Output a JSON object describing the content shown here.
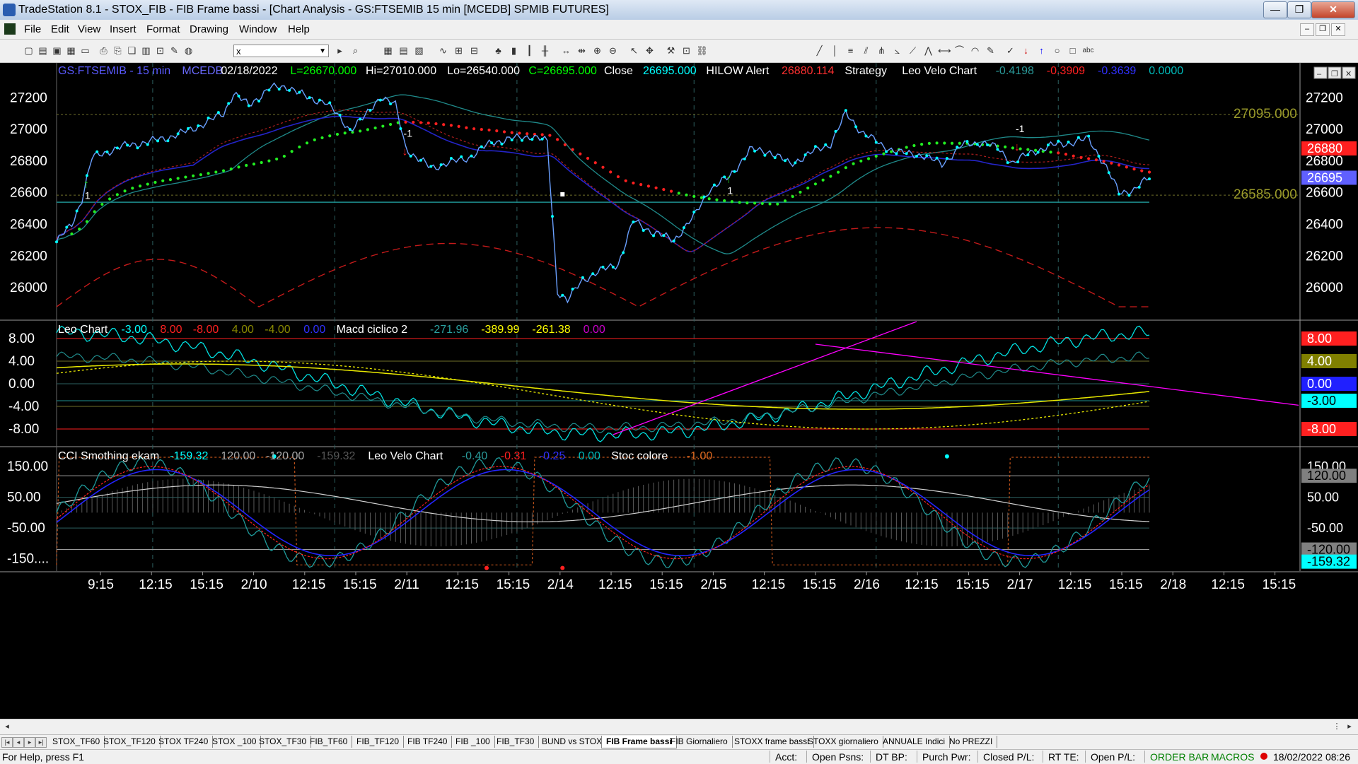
{
  "window": {
    "title": "TradeStation 8.1 - STOX_FIB - FIB Frame bassi - [Chart Analysis - GS:FTSEMIB  15 min  [MCEDB] SPMIB FUTURES]",
    "minimize": "—",
    "maximize": "❐",
    "close": "✕"
  },
  "menu": [
    "File",
    "Edit",
    "View",
    "Insert",
    "Format",
    "Drawing",
    "Window",
    "Help"
  ],
  "toolbar": {
    "symbol_value": "x"
  },
  "colors": {
    "bg": "#000000",
    "accent_cyan": "#00ffff",
    "dot_red": "#ff2020",
    "dot_green": "#22ee22",
    "blue": "#2020ff",
    "yellow": "#e8e800",
    "magenta": "#ff00ff"
  },
  "price_pane": {
    "legend": [
      {
        "text": "GS:FTSEMIB - 15 min",
        "color": "#5a5aff"
      },
      {
        "text": "MCEDB",
        "color": "#6a6aff"
      },
      {
        "text": "02/18/2022",
        "color": "#ffffff"
      },
      {
        "text": "L=26670.000",
        "color": "#00ff00"
      },
      {
        "text": "Hi=27010.000",
        "color": "#ffffff"
      },
      {
        "text": "Lo=26540.000",
        "color": "#ffffff"
      },
      {
        "text": "C=26695.000",
        "color": "#00ff00"
      },
      {
        "text": "Close",
        "color": "#ffffff"
      },
      {
        "text": "26695.000",
        "color": "#00ffff"
      },
      {
        "text": "HILOW Alert",
        "color": "#ffffff"
      },
      {
        "text": "26880.114",
        "color": "#ff3030"
      },
      {
        "text": "Strategy",
        "color": "#ffffff"
      },
      {
        "text": "Leo Velo Chart",
        "color": "#ffffff"
      },
      {
        "text": "-0.4198",
        "color": "#2a9a9a"
      },
      {
        "text": "-0.3909",
        "color": "#ff2020"
      },
      {
        "text": "-0.3639",
        "color": "#3030ff"
      },
      {
        "text": "0.0000",
        "color": "#00bbbb"
      }
    ],
    "y_ticks": [
      "27200",
      "27000",
      "26800",
      "26600",
      "26400",
      "26200",
      "26000"
    ],
    "level_labels": [
      "27095.000",
      "26585.000"
    ],
    "right_badges": [
      {
        "text": "26880",
        "bg": "#ff2020",
        "fg": "#ffffff",
        "price": 26880
      },
      {
        "text": "26695",
        "bg": "#6060ff",
        "fg": "#ffffff",
        "price": 26695
      }
    ],
    "trade_markers": [
      "1",
      "-1",
      "1",
      "-1"
    ]
  },
  "macd_pane": {
    "legend": [
      {
        "text": "Leo Chart",
        "color": "#ffffff"
      },
      {
        "text": "-3.00",
        "color": "#00ffff"
      },
      {
        "text": "8.00",
        "color": "#ff2020"
      },
      {
        "text": "-8.00",
        "color": "#ff2020"
      },
      {
        "text": "4.00",
        "color": "#888800"
      },
      {
        "text": "-4.00",
        "color": "#888800"
      },
      {
        "text": "0.00",
        "color": "#3030ff"
      },
      {
        "text": "Macd ciclico 2",
        "color": "#ffffff"
      },
      {
        "text": "-271.96",
        "color": "#2aa0a0"
      },
      {
        "text": "-389.99",
        "color": "#ffff00"
      },
      {
        "text": "-261.38",
        "color": "#ffff00"
      },
      {
        "text": "0.00",
        "color": "#cc00cc"
      }
    ],
    "y_ticks": [
      "8.00",
      "4.00",
      "0.00",
      "-4.00",
      "-8.00"
    ],
    "right_badges": [
      {
        "text": "8.00",
        "bg": "#ff2020",
        "fg": "#ffffff",
        "value": 8
      },
      {
        "text": "4.00",
        "bg": "#808000",
        "fg": "#ffffff",
        "value": 4
      },
      {
        "text": "0.00",
        "bg": "#2020ff",
        "fg": "#ffffff",
        "value": 0
      },
      {
        "text": "-3.00",
        "bg": "#00ffff",
        "fg": "#000000",
        "value": -3
      },
      {
        "text": "-8.00",
        "bg": "#ff2020",
        "fg": "#ffffff",
        "value": -8
      }
    ]
  },
  "cci_pane": {
    "legend": [
      {
        "text": "CCI Smothing ekam",
        "color": "#ffffff"
      },
      {
        "text": "-159.32",
        "color": "#00ffff"
      },
      {
        "text": "120.00",
        "color": "#aaaaaa"
      },
      {
        "text": "-120.00",
        "color": "#aaaaaa"
      },
      {
        "text": "-159.32",
        "color": "#555555"
      },
      {
        "text": "Leo Velo Chart",
        "color": "#ffffff"
      },
      {
        "text": "-0.40",
        "color": "#2a9a9a"
      },
      {
        "text": "-0.31",
        "color": "#ff2020"
      },
      {
        "text": "-0.25",
        "color": "#3030ff"
      },
      {
        "text": "0.00",
        "color": "#00bbbb"
      },
      {
        "text": "Stoc colore",
        "color": "#ffffff"
      },
      {
        "text": "-1.00",
        "color": "#e06a20"
      }
    ],
    "y_ticks": [
      "150.00",
      "50.00",
      "-50.00",
      "-150...."
    ],
    "right_badges": [
      {
        "text": "150.00",
        "bg": "#000000",
        "fg": "#ffffff",
        "value": 150
      },
      {
        "text": "120.00",
        "bg": "#808080",
        "fg": "#000000",
        "value": 120
      },
      {
        "text": "50.00",
        "bg": "#000000",
        "fg": "#ffffff",
        "value": 50
      },
      {
        "text": "-50.00",
        "bg": "#000000",
        "fg": "#ffffff",
        "value": -50
      },
      {
        "text": "-120.00",
        "bg": "#808080",
        "fg": "#000000",
        "value": -120
      },
      {
        "text": "-159.32",
        "bg": "#00ffff",
        "fg": "#000000",
        "value": -159.32
      }
    ]
  },
  "x_axis": [
    "9:15",
    "12:15",
    "15:15",
    "2/10",
    "12:15",
    "15:15",
    "2/11",
    "12:15",
    "15:15",
    "2/14",
    "12:15",
    "15:15",
    "2/15",
    "12:15",
    "15:15",
    "2/16",
    "12:15",
    "15:15",
    "2/17",
    "12:15",
    "15:15",
    "2/18",
    "12:15",
    "15:15"
  ],
  "tabs": [
    "STOX_TF60",
    "STOX_TF120",
    "STOX TF240",
    "STOX _100",
    "STOX_TF30",
    "FIB_TF60",
    "FIB_TF120",
    "FIB TF240",
    "FIB _100",
    "FIB_TF30",
    "BUND vs STOXX",
    "FIB Frame bassi",
    "FIB Giornaliero",
    "STOXX frame bassi",
    "STOXX giornaliero",
    "ANNUALE Indici",
    "No PREZZI"
  ],
  "active_tab": "FIB Frame bassi",
  "status": {
    "help": "For Help, press F1",
    "acct": "Acct:",
    "open_psns": "Open Psns:",
    "dt_bp": "DT BP:",
    "purch_pwr": "Purch Pwr:",
    "closed_pl": "Closed P/L:",
    "rt_te": "RT TE:",
    "open_pl": "Open P/L:",
    "order_bar": "ORDER BAR",
    "macros": "MACROS",
    "datetime": "18/02/2022 08:26"
  },
  "chart_data": {
    "type": "line",
    "instrument": "GS:FTSEMIB 15 min",
    "price_range": [
      25800,
      27420
    ],
    "close_points": [
      {
        "i": 0,
        "v": 26290
      },
      {
        "i": 6,
        "v": 26400
      },
      {
        "i": 10,
        "v": 26560
      },
      {
        "i": 14,
        "v": 26820
      },
      {
        "i": 20,
        "v": 26860
      },
      {
        "i": 28,
        "v": 26900
      },
      {
        "i": 36,
        "v": 26920
      },
      {
        "i": 44,
        "v": 26950
      },
      {
        "i": 52,
        "v": 26990
      },
      {
        "i": 60,
        "v": 27050
      },
      {
        "i": 66,
        "v": 27100
      },
      {
        "i": 70,
        "v": 27230
      },
      {
        "i": 76,
        "v": 27150
      },
      {
        "i": 84,
        "v": 27260
      },
      {
        "i": 92,
        "v": 27270
      },
      {
        "i": 100,
        "v": 27190
      },
      {
        "i": 106,
        "v": 27180
      },
      {
        "i": 112,
        "v": 27070
      },
      {
        "i": 116,
        "v": 27000
      },
      {
        "i": 122,
        "v": 27080
      },
      {
        "i": 128,
        "v": 27210
      },
      {
        "i": 134,
        "v": 27150
      },
      {
        "i": 138,
        "v": 26890
      },
      {
        "i": 142,
        "v": 26820
      },
      {
        "i": 148,
        "v": 26760
      },
      {
        "i": 156,
        "v": 26790
      },
      {
        "i": 164,
        "v": 26830
      },
      {
        "i": 172,
        "v": 26920
      },
      {
        "i": 180,
        "v": 26940
      },
      {
        "i": 188,
        "v": 26960
      },
      {
        "i": 194,
        "v": 26920
      },
      {
        "i": 198,
        "v": 25980
      },
      {
        "i": 202,
        "v": 25920
      },
      {
        "i": 208,
        "v": 26050
      },
      {
        "i": 214,
        "v": 26100
      },
      {
        "i": 222,
        "v": 26150
      },
      {
        "i": 228,
        "v": 26420
      },
      {
        "i": 236,
        "v": 26350
      },
      {
        "i": 244,
        "v": 26300
      },
      {
        "i": 252,
        "v": 26450
      },
      {
        "i": 258,
        "v": 26620
      },
      {
        "i": 266,
        "v": 26700
      },
      {
        "i": 274,
        "v": 26870
      },
      {
        "i": 282,
        "v": 26860
      },
      {
        "i": 290,
        "v": 26780
      },
      {
        "i": 298,
        "v": 26850
      },
      {
        "i": 306,
        "v": 26910
      },
      {
        "i": 312,
        "v": 27100
      },
      {
        "i": 318,
        "v": 26990
      },
      {
        "i": 326,
        "v": 26900
      },
      {
        "i": 334,
        "v": 26850
      },
      {
        "i": 342,
        "v": 26840
      },
      {
        "i": 350,
        "v": 26780
      },
      {
        "i": 358,
        "v": 26900
      },
      {
        "i": 366,
        "v": 26920
      },
      {
        "i": 372,
        "v": 26880
      },
      {
        "i": 378,
        "v": 26790
      },
      {
        "i": 386,
        "v": 26860
      },
      {
        "i": 394,
        "v": 26900
      },
      {
        "i": 402,
        "v": 26920
      },
      {
        "i": 408,
        "v": 26940
      },
      {
        "i": 414,
        "v": 26790
      },
      {
        "i": 420,
        "v": 26600
      },
      {
        "i": 426,
        "v": 26620
      },
      {
        "i": 432,
        "v": 26695
      }
    ],
    "levels": [
      27095,
      26585
    ],
    "series": [
      {
        "name": "Leo Chart",
        "values": [
          -3.0,
          8.0,
          -8.0,
          4.0,
          -4.0,
          0.0
        ]
      },
      {
        "name": "Macd ciclico 2",
        "values": [
          -271.96,
          -389.99,
          -261.38,
          0.0
        ]
      },
      {
        "name": "CCI Smothing ekam",
        "values": [
          -159.32,
          120.0,
          -120.0,
          -159.32
        ]
      },
      {
        "name": "Leo Velo Chart",
        "values": [
          -0.4,
          -0.31,
          -0.25,
          0.0
        ]
      },
      {
        "name": "Stoc colore",
        "values": [
          -1.0
        ]
      }
    ],
    "macd_range": [
      -11,
      11
    ],
    "cci_range": [
      -190,
      210
    ]
  }
}
